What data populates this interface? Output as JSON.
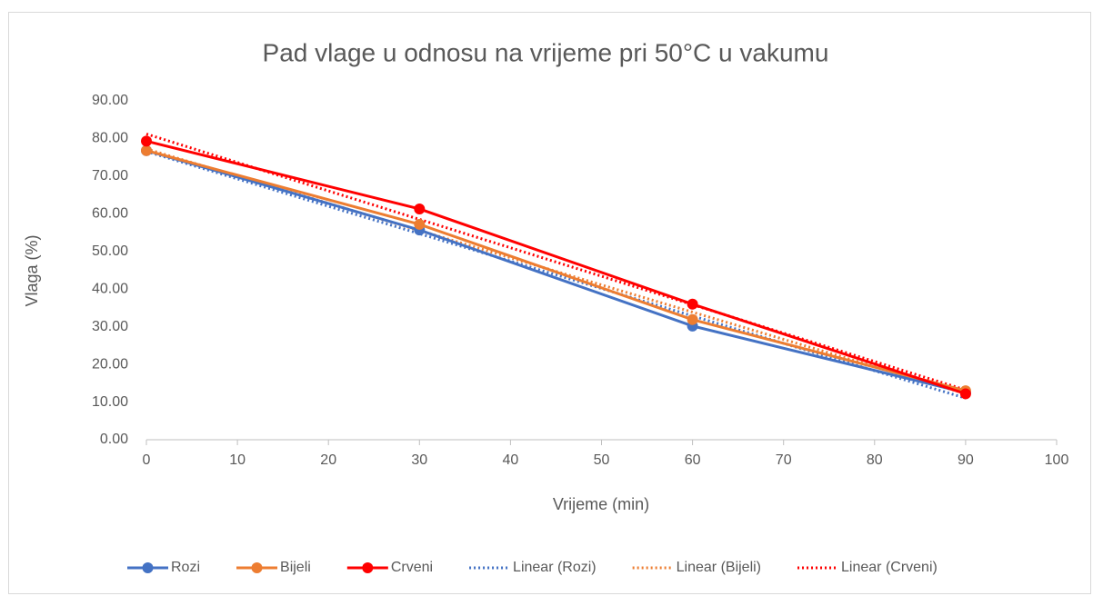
{
  "chart_data": {
    "type": "line",
    "title": "Pad vlage u odnosu na vrijeme pri 50°C u vakumu",
    "x_label": "Vrijeme (min)",
    "y_label": "Vlaga (%)",
    "x": [
      0,
      30,
      60,
      90
    ],
    "series": [
      {
        "name": "Rozi",
        "color": "#4472c4",
        "values": [
          76.8,
          55.7,
          30.2,
          12.5
        ],
        "trendline": "linear",
        "trendline_name": "Linear (Rozi)"
      },
      {
        "name": "Bijeli",
        "color": "#ed7d31",
        "values": [
          76.8,
          57.2,
          31.9,
          13.0
        ],
        "trendline": "linear",
        "trendline_name": "Linear (Bijeli)"
      },
      {
        "name": "Crveni",
        "color": "#ff0000",
        "values": [
          79.3,
          61.3,
          36.0,
          12.2
        ],
        "trendline": "linear",
        "trendline_name": "Linear (Crveni)"
      }
    ],
    "xlim": [
      0,
      100
    ],
    "xticks": [
      0,
      10,
      20,
      30,
      40,
      50,
      60,
      70,
      80,
      90,
      100
    ],
    "ylim": [
      0,
      90
    ],
    "yticks": [
      {
        "value": 0,
        "label": "0.00"
      },
      {
        "value": 10,
        "label": "10.00"
      },
      {
        "value": 20,
        "label": "20.00"
      },
      {
        "value": 30,
        "label": "30.00"
      },
      {
        "value": 40,
        "label": "40.00"
      },
      {
        "value": 50,
        "label": "50.00"
      },
      {
        "value": 60,
        "label": "60.00"
      },
      {
        "value": 70,
        "label": "70.00"
      },
      {
        "value": 80,
        "label": "80.00"
      },
      {
        "value": 90,
        "label": "90.00"
      }
    ],
    "grid": false,
    "legend": "bottom"
  }
}
